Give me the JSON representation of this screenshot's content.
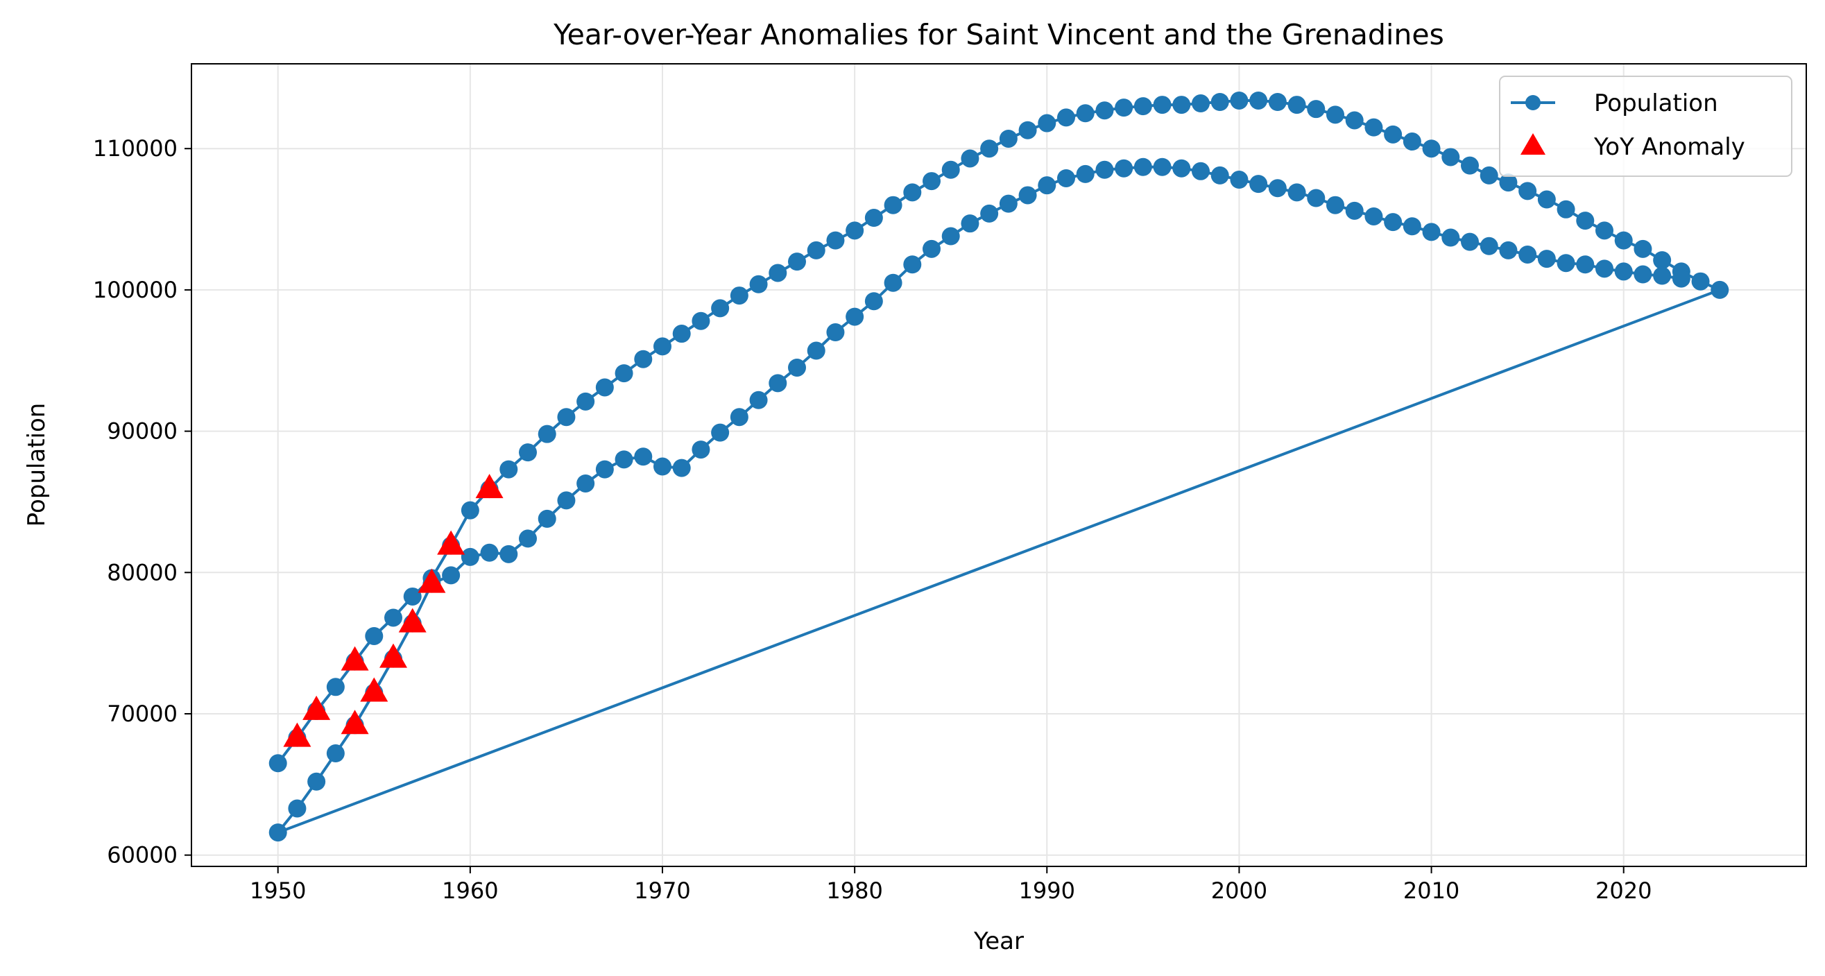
{
  "chart_data": {
    "type": "line",
    "title": "Year-over-Year Anomalies for Saint Vincent and the Grenadines",
    "xlabel": "Year",
    "ylabel": "Population",
    "xlim": [
      1945.5,
      2029.5
    ],
    "ylim": [
      59200,
      116000
    ],
    "xticks": [
      1950,
      1960,
      1970,
      1980,
      1990,
      2000,
      2010,
      2020
    ],
    "yticks": [
      60000,
      70000,
      80000,
      90000,
      100000,
      110000
    ],
    "grid": true,
    "legend_position": "top-right",
    "legend": [
      "Population",
      "YoY Anomaly"
    ],
    "colors": {
      "line": "#1f77b4",
      "anomaly": "#ff0000",
      "grid": "#e6e6e6"
    },
    "series": [
      {
        "name": "Population",
        "type": "line",
        "marker": "circle",
        "points": [
          [
            1950,
            66500
          ],
          [
            1951,
            68300
          ],
          [
            1952,
            70200
          ],
          [
            1953,
            71900
          ],
          [
            1954,
            73700
          ],
          [
            1955,
            75500
          ],
          [
            1956,
            76800
          ],
          [
            1957,
            78300
          ],
          [
            1958,
            79600
          ],
          [
            1959,
            81900
          ],
          [
            1960,
            84400
          ],
          [
            1961,
            85900
          ],
          [
            1962,
            87300
          ],
          [
            1963,
            88500
          ],
          [
            1964,
            89800
          ],
          [
            1965,
            91000
          ],
          [
            1966,
            92100
          ],
          [
            1967,
            93100
          ],
          [
            1968,
            94100
          ],
          [
            1969,
            95100
          ],
          [
            1970,
            96000
          ],
          [
            1971,
            96900
          ],
          [
            1972,
            97800
          ],
          [
            1973,
            98700
          ],
          [
            1974,
            99600
          ],
          [
            1975,
            100400
          ],
          [
            1976,
            101200
          ],
          [
            1977,
            102000
          ],
          [
            1978,
            102800
          ],
          [
            1979,
            103500
          ],
          [
            1980,
            104200
          ],
          [
            1981,
            105100
          ],
          [
            1982,
            106000
          ],
          [
            1983,
            106900
          ],
          [
            1984,
            107700
          ],
          [
            1985,
            108500
          ],
          [
            1986,
            109300
          ],
          [
            1987,
            110000
          ],
          [
            1988,
            110700
          ],
          [
            1989,
            111300
          ],
          [
            1990,
            111800
          ],
          [
            1991,
            112200
          ],
          [
            1992,
            112500
          ],
          [
            1993,
            112700
          ],
          [
            1994,
            112900
          ],
          [
            1995,
            113000
          ],
          [
            1996,
            113100
          ],
          [
            1997,
            113100
          ],
          [
            1998,
            113200
          ],
          [
            1999,
            113300
          ],
          [
            2000,
            113400
          ],
          [
            2001,
            113400
          ],
          [
            2002,
            113300
          ],
          [
            2003,
            113100
          ],
          [
            2004,
            112800
          ],
          [
            2005,
            112400
          ],
          [
            2006,
            112000
          ],
          [
            2007,
            111500
          ],
          [
            2008,
            111000
          ],
          [
            2009,
            110500
          ],
          [
            2010,
            110000
          ],
          [
            2011,
            109400
          ],
          [
            2012,
            108800
          ],
          [
            2013,
            108100
          ],
          [
            2014,
            107600
          ],
          [
            2015,
            107000
          ],
          [
            2016,
            106400
          ],
          [
            2017,
            105700
          ],
          [
            2018,
            104900
          ],
          [
            2019,
            104200
          ],
          [
            2020,
            103500
          ],
          [
            2021,
            102900
          ],
          [
            2022,
            102100
          ],
          [
            2023,
            101300
          ],
          [
            2024,
            100600
          ],
          [
            2025,
            100000
          ],
          [
            1950,
            61600
          ],
          [
            1951,
            63300
          ],
          [
            1952,
            65200
          ],
          [
            1953,
            67200
          ],
          [
            1954,
            69200
          ],
          [
            1955,
            71500
          ],
          [
            1956,
            73900
          ],
          [
            1957,
            76400
          ],
          [
            1958,
            79200
          ],
          [
            1959,
            79800
          ],
          [
            1960,
            81100
          ],
          [
            1961,
            81400
          ],
          [
            1962,
            81300
          ],
          [
            1963,
            82400
          ],
          [
            1964,
            83800
          ],
          [
            1965,
            85100
          ],
          [
            1966,
            86300
          ],
          [
            1967,
            87300
          ],
          [
            1968,
            88000
          ],
          [
            1969,
            88200
          ],
          [
            1970,
            87500
          ],
          [
            1971,
            87400
          ],
          [
            1972,
            88700
          ],
          [
            1973,
            89900
          ],
          [
            1974,
            91000
          ],
          [
            1975,
            92200
          ],
          [
            1976,
            93400
          ],
          [
            1977,
            94500
          ],
          [
            1978,
            95700
          ],
          [
            1979,
            97000
          ],
          [
            1980,
            98100
          ],
          [
            1981,
            99200
          ],
          [
            1982,
            100500
          ],
          [
            1983,
            101800
          ],
          [
            1984,
            102900
          ],
          [
            1985,
            103800
          ],
          [
            1986,
            104700
          ],
          [
            1987,
            105400
          ],
          [
            1988,
            106100
          ],
          [
            1989,
            106700
          ],
          [
            1990,
            107400
          ],
          [
            1991,
            107900
          ],
          [
            1992,
            108200
          ],
          [
            1993,
            108500
          ],
          [
            1994,
            108600
          ],
          [
            1995,
            108700
          ],
          [
            1996,
            108700
          ],
          [
            1997,
            108600
          ],
          [
            1998,
            108400
          ],
          [
            1999,
            108100
          ],
          [
            2000,
            107800
          ],
          [
            2001,
            107500
          ],
          [
            2002,
            107200
          ],
          [
            2003,
            106900
          ],
          [
            2004,
            106500
          ],
          [
            2005,
            106000
          ],
          [
            2006,
            105600
          ],
          [
            2007,
            105200
          ],
          [
            2008,
            104800
          ],
          [
            2009,
            104500
          ],
          [
            2010,
            104100
          ],
          [
            2011,
            103700
          ],
          [
            2012,
            103400
          ],
          [
            2013,
            103100
          ],
          [
            2014,
            102800
          ],
          [
            2015,
            102500
          ],
          [
            2016,
            102200
          ],
          [
            2017,
            101900
          ],
          [
            2018,
            101800
          ],
          [
            2019,
            101500
          ],
          [
            2020,
            101300
          ],
          [
            2021,
            101100
          ],
          [
            2022,
            101000
          ],
          [
            2023,
            100800
          ]
        ]
      },
      {
        "name": "YoY Anomaly",
        "type": "scatter",
        "marker": "triangle",
        "points": [
          [
            1951,
            68300
          ],
          [
            1952,
            70200
          ],
          [
            1954,
            73700
          ],
          [
            1958,
            79200
          ],
          [
            1959,
            81900
          ],
          [
            1961,
            85900
          ],
          [
            1954,
            69200
          ],
          [
            1955,
            71500
          ],
          [
            1956,
            73900
          ],
          [
            1957,
            76400
          ]
        ]
      }
    ]
  }
}
